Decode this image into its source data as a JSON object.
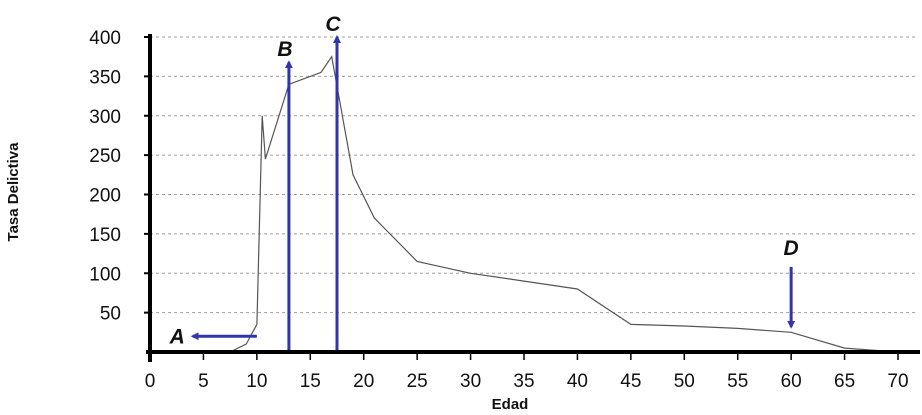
{
  "chart_data": {
    "type": "line",
    "title": "",
    "xlabel": "Edad",
    "ylabel": "Tasa Delictiva",
    "xlim": [
      0,
      70
    ],
    "ylim": [
      0,
      400
    ],
    "x_ticks": [
      0,
      5,
      10,
      15,
      20,
      25,
      30,
      35,
      40,
      45,
      50,
      55,
      60,
      65,
      70
    ],
    "y_ticks": [
      50,
      100,
      150,
      200,
      250,
      300,
      350,
      400
    ],
    "grid": "horizontal dashed",
    "legend": "none",
    "series": [
      {
        "color": "#555555",
        "x": [
          7.5,
          9,
          10,
          10.5,
          10.8,
          13,
          16,
          17,
          19,
          21,
          25,
          30,
          35,
          40,
          45,
          50,
          55,
          60,
          65,
          70
        ],
        "y": [
          0,
          10,
          35,
          300,
          245,
          340,
          355,
          375,
          225,
          170,
          115,
          100,
          90,
          80,
          35,
          33,
          30,
          25,
          5,
          0
        ]
      }
    ],
    "annotations": [
      {
        "label": "A",
        "direction": "left",
        "x_from": 10,
        "x_to": 4,
        "y": 20,
        "color": "#3333aa"
      },
      {
        "label": "B",
        "direction": "up",
        "x": 13,
        "y_from": 0,
        "y_to": 368,
        "color": "#3333aa"
      },
      {
        "label": "C",
        "direction": "up",
        "x": 17.5,
        "y_from": 0,
        "y_to": 400,
        "color": "#3333aa"
      },
      {
        "label": "D",
        "direction": "down",
        "x": 60,
        "y_from": 108,
        "y_to": 32,
        "color": "#3333aa"
      }
    ]
  }
}
